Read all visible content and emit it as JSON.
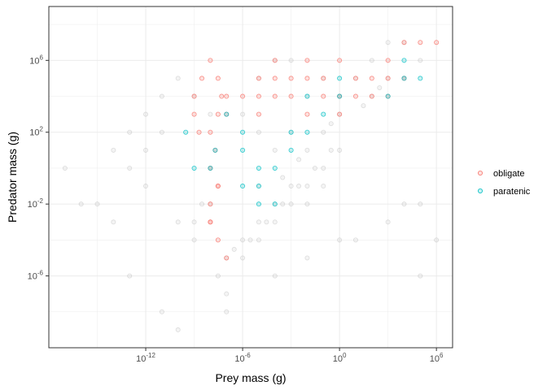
{
  "chart_data": {
    "type": "scatter",
    "title": "",
    "xlabel": "Prey mass (g)",
    "ylabel": "Predator mass (g)",
    "x_scale": "log10",
    "y_scale": "log10",
    "xlim": [
      1e-18,
      10000000.0
    ],
    "ylim": [
      1e-10,
      1000000000.0
    ],
    "x_ticks": [
      {
        "value": 1e-12,
        "base": "10",
        "exp": "-12"
      },
      {
        "value": 1e-06,
        "base": "10",
        "exp": "-6"
      },
      {
        "value": 1,
        "base": "10",
        "exp": "0"
      },
      {
        "value": 1000000.0,
        "base": "10",
        "exp": "6"
      }
    ],
    "y_ticks": [
      {
        "value": 1e-06,
        "base": "10",
        "exp": "-6"
      },
      {
        "value": 0.01,
        "base": "10",
        "exp": "-2"
      },
      {
        "value": 100,
        "base": "10",
        "exp": "2"
      },
      {
        "value": 1000000.0,
        "base": "10",
        "exp": "6"
      }
    ],
    "y_tick_labels": [
      "10^-6",
      "10^-2",
      "10^2",
      "10^6"
    ],
    "grid": true,
    "legend": {
      "position": "right",
      "entries": [
        {
          "label": "obligate",
          "color": "#F8766D"
        },
        {
          "label": "paratenic",
          "color": "#00BFC4"
        }
      ]
    },
    "series": [
      {
        "color": "#A6A6A6",
        "points": [
          [
            1e-05,
            0.0001
          ],
          [
            0.0001,
            0.001
          ],
          [
            0.001,
            0.01
          ],
          [
            0.01,
            0.1
          ],
          [
            0.1,
            1
          ],
          [
            1,
            10
          ],
          [
            3e-05,
            0.001
          ],
          [
            0.0003,
            0.01
          ],
          [
            0.003,
            0.1
          ],
          [
            0.03,
            1
          ],
          [
            0.3,
            10
          ],
          [
            3e-06,
            0.0001
          ],
          [
            1e-06,
            0.0001
          ],
          [
            1e-05,
            0.001
          ],
          [
            0.0001,
            0.01
          ],
          [
            0.001,
            0.1
          ],
          [
            0.01,
            10
          ],
          [
            0.1,
            100
          ],
          [
            1e-09,
            0.0001
          ],
          [
            1e-09,
            0.001
          ],
          [
            3e-09,
            0.01
          ],
          [
            1e-10,
            0.001
          ],
          [
            1e-08,
            0.01
          ],
          [
            1e-08,
            1
          ],
          [
            1e-12,
            10
          ],
          [
            1e-13,
            1
          ],
          [
            1e-11,
            100
          ],
          [
            1e-12,
            0.1
          ],
          [
            1e-14,
            0.001
          ],
          [
            1e-15,
            0.01
          ],
          [
            1e-16,
            0.01
          ],
          [
            1e-17,
            1
          ],
          [
            1e-14,
            10
          ],
          [
            1e-13,
            1e-06
          ],
          [
            1e-11,
            1e-08
          ],
          [
            1e-10,
            1e-09
          ],
          [
            1e-07,
            1e-07
          ],
          [
            1e-07,
            1e-08
          ],
          [
            3e-08,
            1e-06
          ],
          [
            0.0001,
            1e-06
          ],
          [
            0.01,
            1e-05
          ],
          [
            1,
            0.0001
          ],
          [
            10,
            0.0001
          ],
          [
            1000,
            0.001
          ],
          [
            10000.0,
            0.01
          ],
          [
            100000.0,
            0.01
          ],
          [
            1000000.0,
            0.0001
          ],
          [
            100000.0,
            1e-06
          ],
          [
            1,
            10000.0
          ],
          [
            10,
            100000.0
          ],
          [
            100,
            1000000.0
          ],
          [
            1000,
            10000000.0
          ],
          [
            10000.0,
            10000000.0
          ],
          [
            100000.0,
            1000000.0
          ],
          [
            0.001,
            1000000.0
          ],
          [
            1e-05,
            100000.0
          ],
          [
            0.0001,
            1000000.0
          ],
          [
            0.1,
            100000.0
          ],
          [
            0.01,
            10000.0
          ],
          [
            100.0,
            10000.0
          ],
          [
            1e-06,
            1000.0
          ],
          [
            1e-05,
            100
          ],
          [
            0.0001,
            10
          ],
          [
            1e-11,
            10000.0
          ],
          [
            1e-10,
            100000.0
          ],
          [
            1e-09,
            10000.0
          ],
          [
            1e-08,
            1000.0
          ],
          [
            1e-12,
            1000.0
          ],
          [
            1e-13,
            100
          ],
          [
            1e-05,
            0.1
          ],
          [
            0.001,
            100
          ],
          [
            1,
            1000.0
          ],
          [
            0.0003,
            0.3
          ],
          [
            0.003,
            3
          ],
          [
            0.3,
            300
          ],
          [
            30,
            3000.0
          ],
          [
            300,
            30000.0
          ],
          [
            1e-07,
            1e-05
          ],
          [
            3e-07,
            3e-05
          ],
          [
            1e-06,
            1e-05
          ],
          [
            0.01,
            0.01
          ],
          [
            0.1,
            0.1
          ],
          [
            1000.0,
            100000.0
          ],
          [
            10000.0,
            100000.0
          ]
        ]
      },
      {
        "name": "obligate",
        "color": "#F8766D",
        "points": [
          [
            1e-08,
            1000000.0
          ],
          [
            3e-08,
            100000.0
          ],
          [
            1e-07,
            10000.0
          ],
          [
            3e-08,
            1000.0
          ],
          [
            1e-08,
            100
          ],
          [
            2e-08,
            10
          ],
          [
            1e-08,
            1
          ],
          [
            3e-08,
            0.1
          ],
          [
            1e-08,
            0.01
          ],
          [
            1e-08,
            0.001
          ],
          [
            3e-08,
            0.0001
          ],
          [
            1e-07,
            1e-05
          ],
          [
            1e-09,
            10000.0
          ],
          [
            1e-09,
            1000.0
          ],
          [
            3e-09,
            100000.0
          ],
          [
            1e-07,
            1000.0
          ],
          [
            5e-08,
            10000.0
          ],
          [
            2e-09,
            100
          ],
          [
            1e-05,
            100000.0
          ],
          [
            0.0001,
            10000.0
          ],
          [
            0.0001,
            100000.0
          ],
          [
            0.001,
            10000.0
          ],
          [
            0.01,
            100000.0
          ],
          [
            0.1,
            10000.0
          ],
          [
            1,
            10000.0
          ],
          [
            10,
            100000.0
          ],
          [
            100,
            100000.0
          ],
          [
            1000.0,
            1000000.0
          ],
          [
            10000.0,
            10000000.0
          ],
          [
            100000.0,
            10000000.0
          ],
          [
            1e-06,
            10000.0
          ],
          [
            1e-05,
            1000.0
          ],
          [
            0.01,
            1000.0
          ],
          [
            1,
            1000.0
          ],
          [
            100,
            10000.0
          ],
          [
            1000.0,
            10000.0
          ],
          [
            0.0001,
            1000000.0
          ],
          [
            0.01,
            1000000.0
          ],
          [
            1,
            1000000.0
          ],
          [
            1000.0,
            100000.0
          ],
          [
            10000.0,
            100000.0
          ],
          [
            1000000.0,
            10000000.0
          ],
          [
            0.001,
            100000.0
          ],
          [
            0.1,
            100000.0
          ],
          [
            10,
            10000.0
          ],
          [
            1e-05,
            10000.0
          ],
          [
            3e-08,
            0.1
          ],
          [
            1e-08,
            0.001
          ]
        ]
      },
      {
        "name": "paratenic",
        "color": "#00BFC4",
        "points": [
          [
            3e-10,
            100
          ],
          [
            1e-09,
            1
          ],
          [
            2e-08,
            10
          ],
          [
            1e-08,
            1
          ],
          [
            1e-06,
            10
          ],
          [
            1e-05,
            1
          ],
          [
            1e-05,
            0.1
          ],
          [
            1e-06,
            0.1
          ],
          [
            0.0001,
            1
          ],
          [
            0.001,
            100
          ],
          [
            0.01,
            100
          ],
          [
            0.1,
            1000.0
          ],
          [
            1,
            10000.0
          ],
          [
            1000.0,
            10000.0
          ],
          [
            10000.0,
            100000.0
          ],
          [
            100000.0,
            100000.0
          ],
          [
            1e-05,
            0.01
          ],
          [
            0.0001,
            0.01
          ],
          [
            0.01,
            10000.0
          ],
          [
            1,
            100000.0
          ],
          [
            10000.0,
            1000000.0
          ],
          [
            1e-07,
            1000.0
          ],
          [
            1e-06,
            100
          ],
          [
            0.001,
            10
          ]
        ]
      }
    ]
  }
}
